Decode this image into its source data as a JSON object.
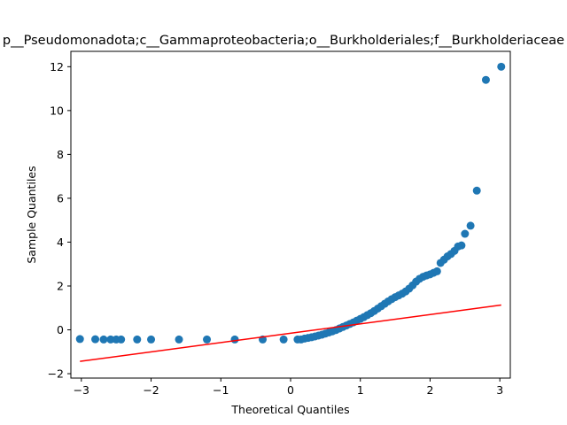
{
  "chart_data": {
    "type": "scatter",
    "title": "p__Pseudomonadota;c__Gammaproteobacteria;o__Burkholderiales;f__Burkholderiaceae",
    "xlabel": "Theoretical Quantiles",
    "ylabel": "Sample Quantiles",
    "xlim": [
      -3.15,
      3.15
    ],
    "ylim": [
      -2.2,
      12.7
    ],
    "xticks": [
      -3,
      -2,
      -1,
      0,
      1,
      2,
      3
    ],
    "yticks": [
      -2,
      0,
      2,
      4,
      6,
      8,
      10,
      12
    ],
    "grid": false,
    "colors": {
      "points": "#1f77b4",
      "reference_line": "#ff0000"
    },
    "series": [
      {
        "type": "scatter",
        "points": [
          [
            -3.02,
            -0.42
          ],
          [
            -2.8,
            -0.43
          ],
          [
            -2.68,
            -0.44
          ],
          [
            -2.58,
            -0.44
          ],
          [
            -2.5,
            -0.44
          ],
          [
            -2.43,
            -0.44
          ],
          [
            -2.2,
            -0.44
          ],
          [
            -2.0,
            -0.44
          ],
          [
            -1.6,
            -0.44
          ],
          [
            -1.2,
            -0.44
          ],
          [
            -0.8,
            -0.44
          ],
          [
            -0.4,
            -0.44
          ],
          [
            -0.1,
            -0.44
          ],
          [
            0.1,
            -0.44
          ],
          [
            0.15,
            -0.44
          ],
          [
            0.2,
            -0.4
          ],
          [
            0.25,
            -0.37
          ],
          [
            0.3,
            -0.34
          ],
          [
            0.35,
            -0.3
          ],
          [
            0.4,
            -0.26
          ],
          [
            0.45,
            -0.22
          ],
          [
            0.5,
            -0.17
          ],
          [
            0.55,
            -0.12
          ],
          [
            0.6,
            -0.07
          ],
          [
            0.65,
            -0.01
          ],
          [
            0.7,
            0.06
          ],
          [
            0.75,
            0.13
          ],
          [
            0.8,
            0.2
          ],
          [
            0.85,
            0.27
          ],
          [
            0.9,
            0.34
          ],
          [
            0.95,
            0.42
          ],
          [
            1.0,
            0.5
          ],
          [
            1.05,
            0.58
          ],
          [
            1.1,
            0.67
          ],
          [
            1.15,
            0.76
          ],
          [
            1.2,
            0.86
          ],
          [
            1.25,
            0.97
          ],
          [
            1.3,
            1.08
          ],
          [
            1.35,
            1.19
          ],
          [
            1.4,
            1.3
          ],
          [
            1.45,
            1.4
          ],
          [
            1.5,
            1.49
          ],
          [
            1.55,
            1.57
          ],
          [
            1.6,
            1.65
          ],
          [
            1.65,
            1.75
          ],
          [
            1.7,
            1.88
          ],
          [
            1.75,
            2.03
          ],
          [
            1.8,
            2.2
          ],
          [
            1.85,
            2.33
          ],
          [
            1.9,
            2.42
          ],
          [
            1.95,
            2.48
          ],
          [
            2.0,
            2.53
          ],
          [
            2.05,
            2.6
          ],
          [
            2.1,
            2.67
          ],
          [
            2.15,
            3.05
          ],
          [
            2.2,
            3.2
          ],
          [
            2.25,
            3.35
          ],
          [
            2.3,
            3.46
          ],
          [
            2.35,
            3.6
          ],
          [
            2.4,
            3.8
          ],
          [
            2.45,
            3.85
          ],
          [
            2.5,
            4.38
          ],
          [
            2.58,
            4.75
          ],
          [
            2.67,
            6.35
          ],
          [
            2.8,
            11.4
          ],
          [
            3.02,
            12.0
          ]
        ]
      },
      {
        "type": "line",
        "points": [
          [
            -3.02,
            -1.44
          ],
          [
            3.02,
            1.13
          ]
        ]
      }
    ]
  }
}
